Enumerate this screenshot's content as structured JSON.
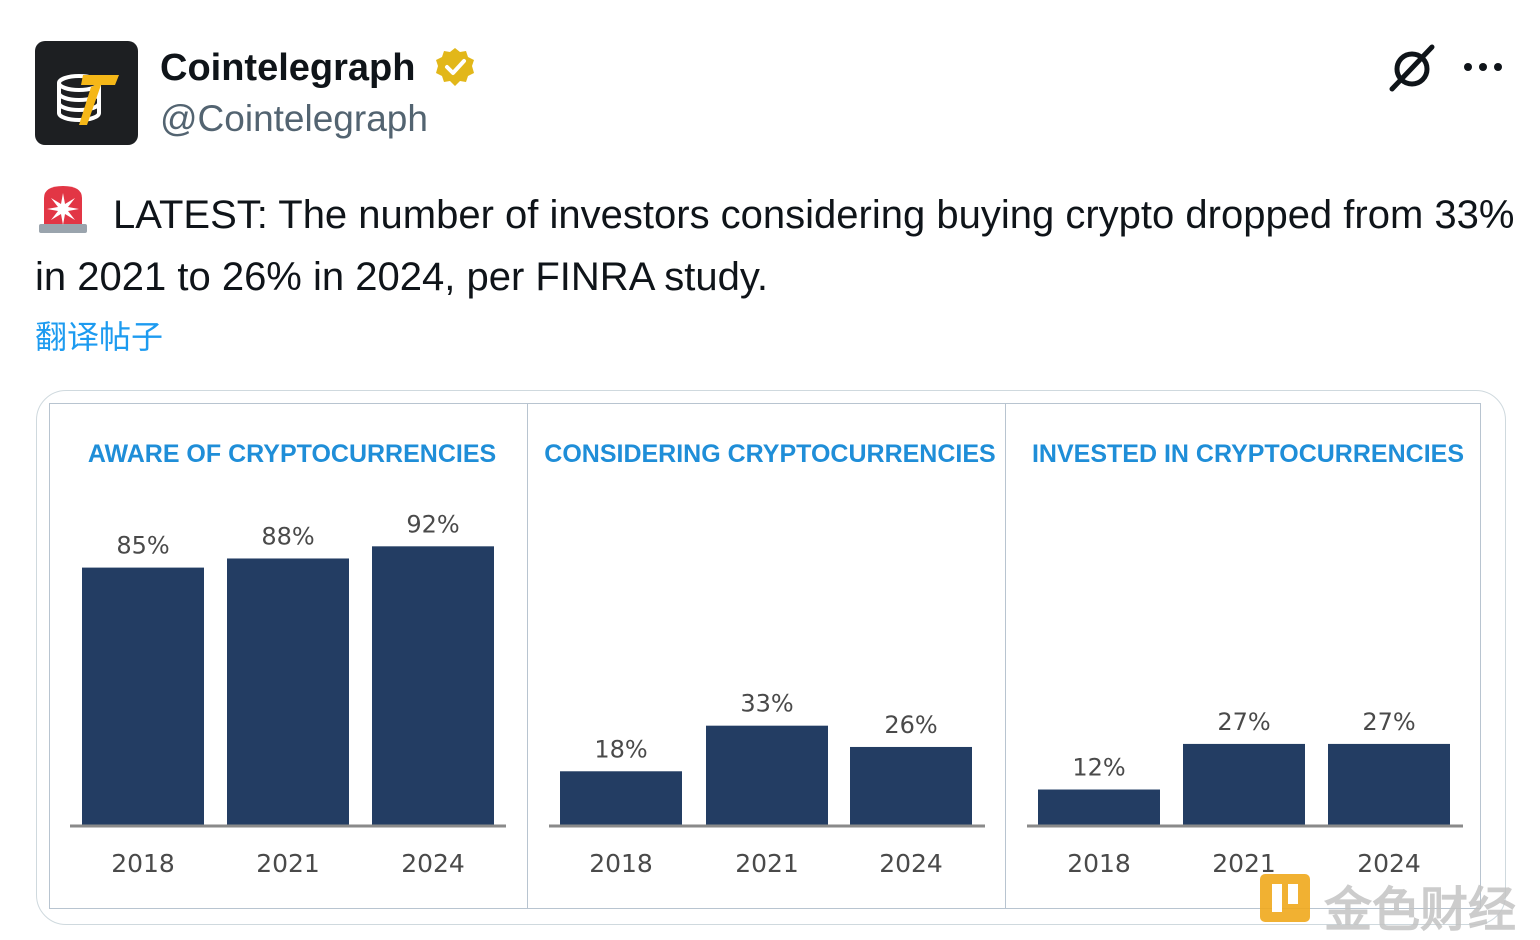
{
  "post": {
    "display_name": "Cointelegraph",
    "handle": "@Cointelegraph",
    "text": "LATEST: The number of investors considering buying crypto dropped from 33% in 2021 to 26% in 2024, per FINRA study.",
    "translate_label": "翻译帖子",
    "icons": {
      "verified": "verified-badge-icon",
      "grok": "grok-icon",
      "more": "more-icon",
      "siren": "siren-emoji"
    },
    "colors": {
      "verified": "#e2b719",
      "link": "#1d9bf0",
      "bar": "#233d63",
      "chart_title": "#1f8ed8"
    }
  },
  "watermark": {
    "text": "金色财经"
  },
  "chart_data": [
    {
      "type": "bar",
      "title": "AWARE OF CRYPTOCURRENCIES",
      "categories": [
        "2018",
        "2021",
        "2024"
      ],
      "values": [
        85,
        88,
        92
      ],
      "labels": [
        "85%",
        "88%",
        "92%"
      ],
      "ylim": [
        0,
        100
      ]
    },
    {
      "type": "bar",
      "title": "CONSIDERING CRYPTOCURRENCIES",
      "categories": [
        "2018",
        "2021",
        "2024"
      ],
      "values": [
        18,
        33,
        26
      ],
      "labels": [
        "18%",
        "33%",
        "26%"
      ],
      "ylim": [
        0,
        100
      ]
    },
    {
      "type": "bar",
      "title": "INVESTED IN CRYPTOCURRENCIES",
      "categories": [
        "2018",
        "2021",
        "2024"
      ],
      "values": [
        12,
        27,
        27
      ],
      "labels": [
        "12%",
        "27%",
        "27%"
      ],
      "ylim": [
        0,
        100
      ]
    }
  ]
}
